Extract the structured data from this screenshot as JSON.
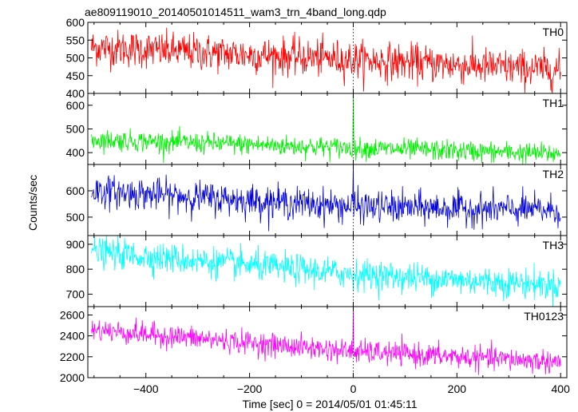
{
  "title": "ae809119010_20140501014511_wam3_trn_4band_long.qdp",
  "chart_data": {
    "type": "line",
    "title": "ae809119010_20140501014511_wam3_trn_4band_long.qdp",
    "xlabel": "Time [sec] 0 = 2014/05/01 01:45:11",
    "ylabel": "Counts/sec",
    "xlim": [
      -512,
      412
    ],
    "x_ticks": [
      -400,
      -200,
      0,
      200,
      400
    ],
    "x_tick_labels": [
      "−400",
      "−200",
      "0",
      "200",
      "400"
    ],
    "x_range_data": [
      -505,
      400
    ],
    "x_step": 1,
    "reference_line_x": 0,
    "panels": [
      {
        "name": "TH0",
        "color": "#ff0000",
        "ylim": [
          400,
          600
        ],
        "y_ticks": [
          400,
          450,
          500,
          550,
          600
        ],
        "y_tick_labels": [
          "400",
          "450",
          "500",
          "550",
          "600"
        ],
        "trend": [
          [
            -505,
            530
          ],
          [
            0,
            495
          ],
          [
            400,
            465
          ]
        ],
        "noise": 26,
        "spike": null
      },
      {
        "name": "TH1",
        "color": "#00ee00",
        "ylim": [
          350,
          650
        ],
        "y_ticks": [
          400,
          500,
          600
        ],
        "y_tick_labels": [
          "400",
          "500",
          "600"
        ],
        "trend": [
          [
            -505,
            455
          ],
          [
            0,
            420
          ],
          [
            400,
            395
          ]
        ],
        "noise": 22,
        "spike": {
          "x": 0,
          "y": 640
        }
      },
      {
        "name": "TH2",
        "color": "#0000dd",
        "ylim": [
          430,
          700
        ],
        "y_ticks": [
          500,
          600
        ],
        "y_tick_labels": [
          "500",
          "600"
        ],
        "trend": [
          [
            -505,
            600
          ],
          [
            0,
            540
          ],
          [
            400,
            525
          ]
        ],
        "noise": 30,
        "spike": {
          "x": 0,
          "y": 700
        }
      },
      {
        "name": "TH3",
        "color": "#00ffff",
        "ylim": [
          650,
          935
        ],
        "y_ticks": [
          700,
          800,
          900
        ],
        "y_tick_labels": [
          "700",
          "800",
          "900"
        ],
        "trend": [
          [
            -505,
            870
          ],
          [
            0,
            780
          ],
          [
            400,
            735
          ]
        ],
        "noise": 30,
        "spike": null
      },
      {
        "name": "TH0123",
        "color": "#ff00ff",
        "ylim": [
          2000,
          2680
        ],
        "y_ticks": [
          2000,
          2200,
          2400,
          2600
        ],
        "y_tick_labels": [
          "2000",
          "2200",
          "2400",
          "2600"
        ],
        "trend": [
          [
            -505,
            2460
          ],
          [
            0,
            2250
          ],
          [
            400,
            2150
          ]
        ],
        "noise": 55,
        "spike": {
          "x": 0,
          "y": 2680
        }
      }
    ],
    "grid": false,
    "legend": "none"
  }
}
